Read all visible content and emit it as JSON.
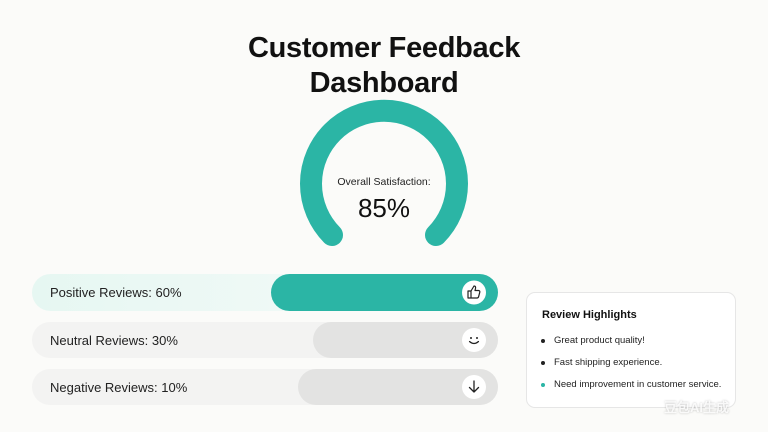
{
  "header": {
    "title_line1": "Customer Feedback",
    "title_line2": "Dashboard"
  },
  "gauge": {
    "label": "Overall Satisfaction:",
    "value": "85%"
  },
  "reviews": [
    "Positive Reviews: 60%",
    "Neutral Reviews: 30%",
    "Negative Reviews: 10%"
  ],
  "highlights": {
    "title": "Review Highlights",
    "items": [
      "Great product quality!",
      "Fast shipping experience.",
      "Need improvement in customer service."
    ]
  },
  "watermark": "豆包AI生成"
}
